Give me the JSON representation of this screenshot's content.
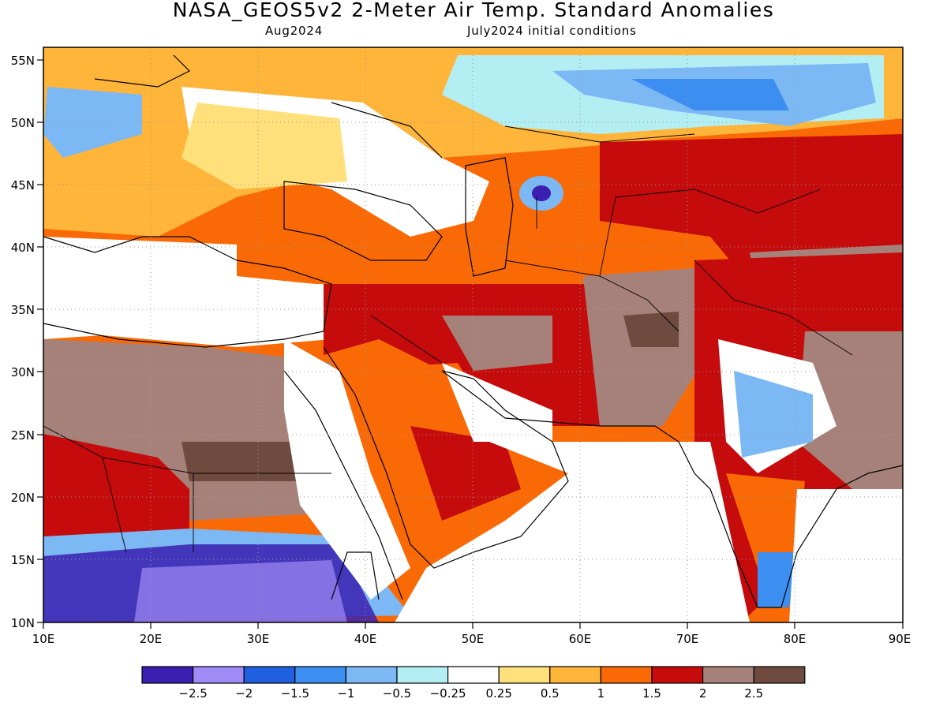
{
  "title": "NASA_GEOS5v2 2-Meter Air Temp. Standard Anomalies",
  "subtitle_left": "Aug2024",
  "subtitle_right": "July2024 initial conditions",
  "map": {
    "lon_labels": [
      "10E",
      "20E",
      "30E",
      "40E",
      "50E",
      "60E",
      "70E",
      "80E",
      "90E"
    ],
    "lat_labels": [
      "55N",
      "50N",
      "45N",
      "40N",
      "35N",
      "30N",
      "25N",
      "20N",
      "15N",
      "10N"
    ],
    "lon_range": [
      10,
      90
    ],
    "lat_range": [
      10,
      56
    ],
    "grid": "dotted"
  },
  "legend": {
    "colors": [
      "#3a1fb0",
      "#9f8bf5",
      "#1f5fe0",
      "#3c8ef0",
      "#7cb8f3",
      "#b3eef3",
      "#ffffff",
      "#ffe07a",
      "#ffb43a",
      "#f96a07",
      "#c50b0b",
      "#a68179",
      "#6e4a3f"
    ],
    "labels": [
      "-2.5",
      "-2",
      "-1.5",
      "-1",
      "-0.5",
      "-0.25",
      "0.25",
      "0.5",
      "1",
      "1.5",
      "2",
      "2.5"
    ]
  }
}
